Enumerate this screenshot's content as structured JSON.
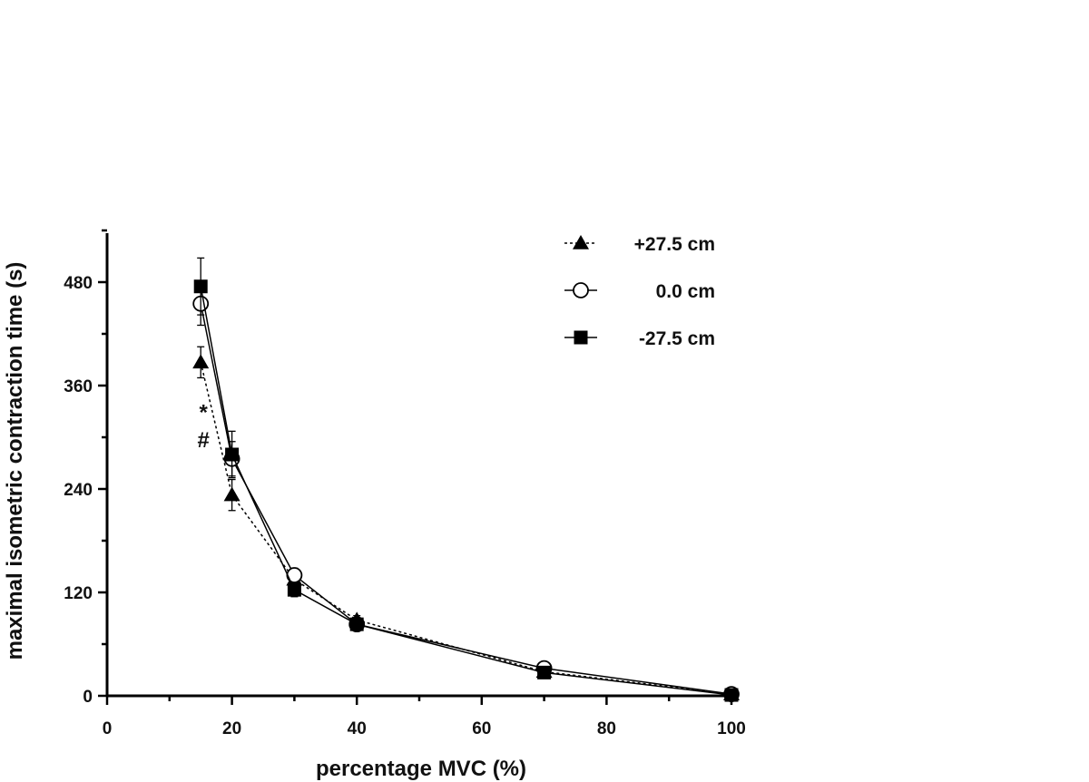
{
  "chart_data": {
    "type": "line",
    "title": "",
    "xlabel": "percentage MVC (%)",
    "ylabel": "maximal isometric contraction time (s)",
    "xlim": [
      0,
      100
    ],
    "ylim": [
      0,
      540
    ],
    "xticks": [
      0,
      20,
      40,
      60,
      80,
      100
    ],
    "yticks": [
      0,
      120,
      240,
      360,
      480
    ],
    "grid": false,
    "legend_position": "top-right",
    "series": [
      {
        "name": "+27.5 cm",
        "marker": "triangle-filled",
        "line": "dashed",
        "x": [
          15,
          20,
          30,
          40,
          70,
          100
        ],
        "y": [
          387,
          233,
          135,
          88,
          28,
          2
        ],
        "err": [
          18,
          18,
          8,
          5,
          3,
          1
        ]
      },
      {
        "name": "0.0 cm",
        "marker": "circle-open",
        "line": "solid",
        "x": [
          15,
          20,
          30,
          40,
          70,
          100
        ],
        "y": [
          455,
          275,
          140,
          83,
          32,
          2
        ],
        "err": [
          25,
          20,
          8,
          5,
          3,
          1
        ]
      },
      {
        "name": "-27.5 cm",
        "marker": "square-filled",
        "line": "solid",
        "x": [
          15,
          20,
          30,
          40,
          70,
          100
        ],
        "y": [
          475,
          280,
          123,
          83,
          27,
          1
        ],
        "err": [
          33,
          27,
          8,
          5,
          3,
          1
        ]
      }
    ],
    "annotations": [
      {
        "text": "*",
        "x": 15,
        "y": 330
      },
      {
        "text": "#",
        "x": 15,
        "y": 298
      }
    ]
  }
}
